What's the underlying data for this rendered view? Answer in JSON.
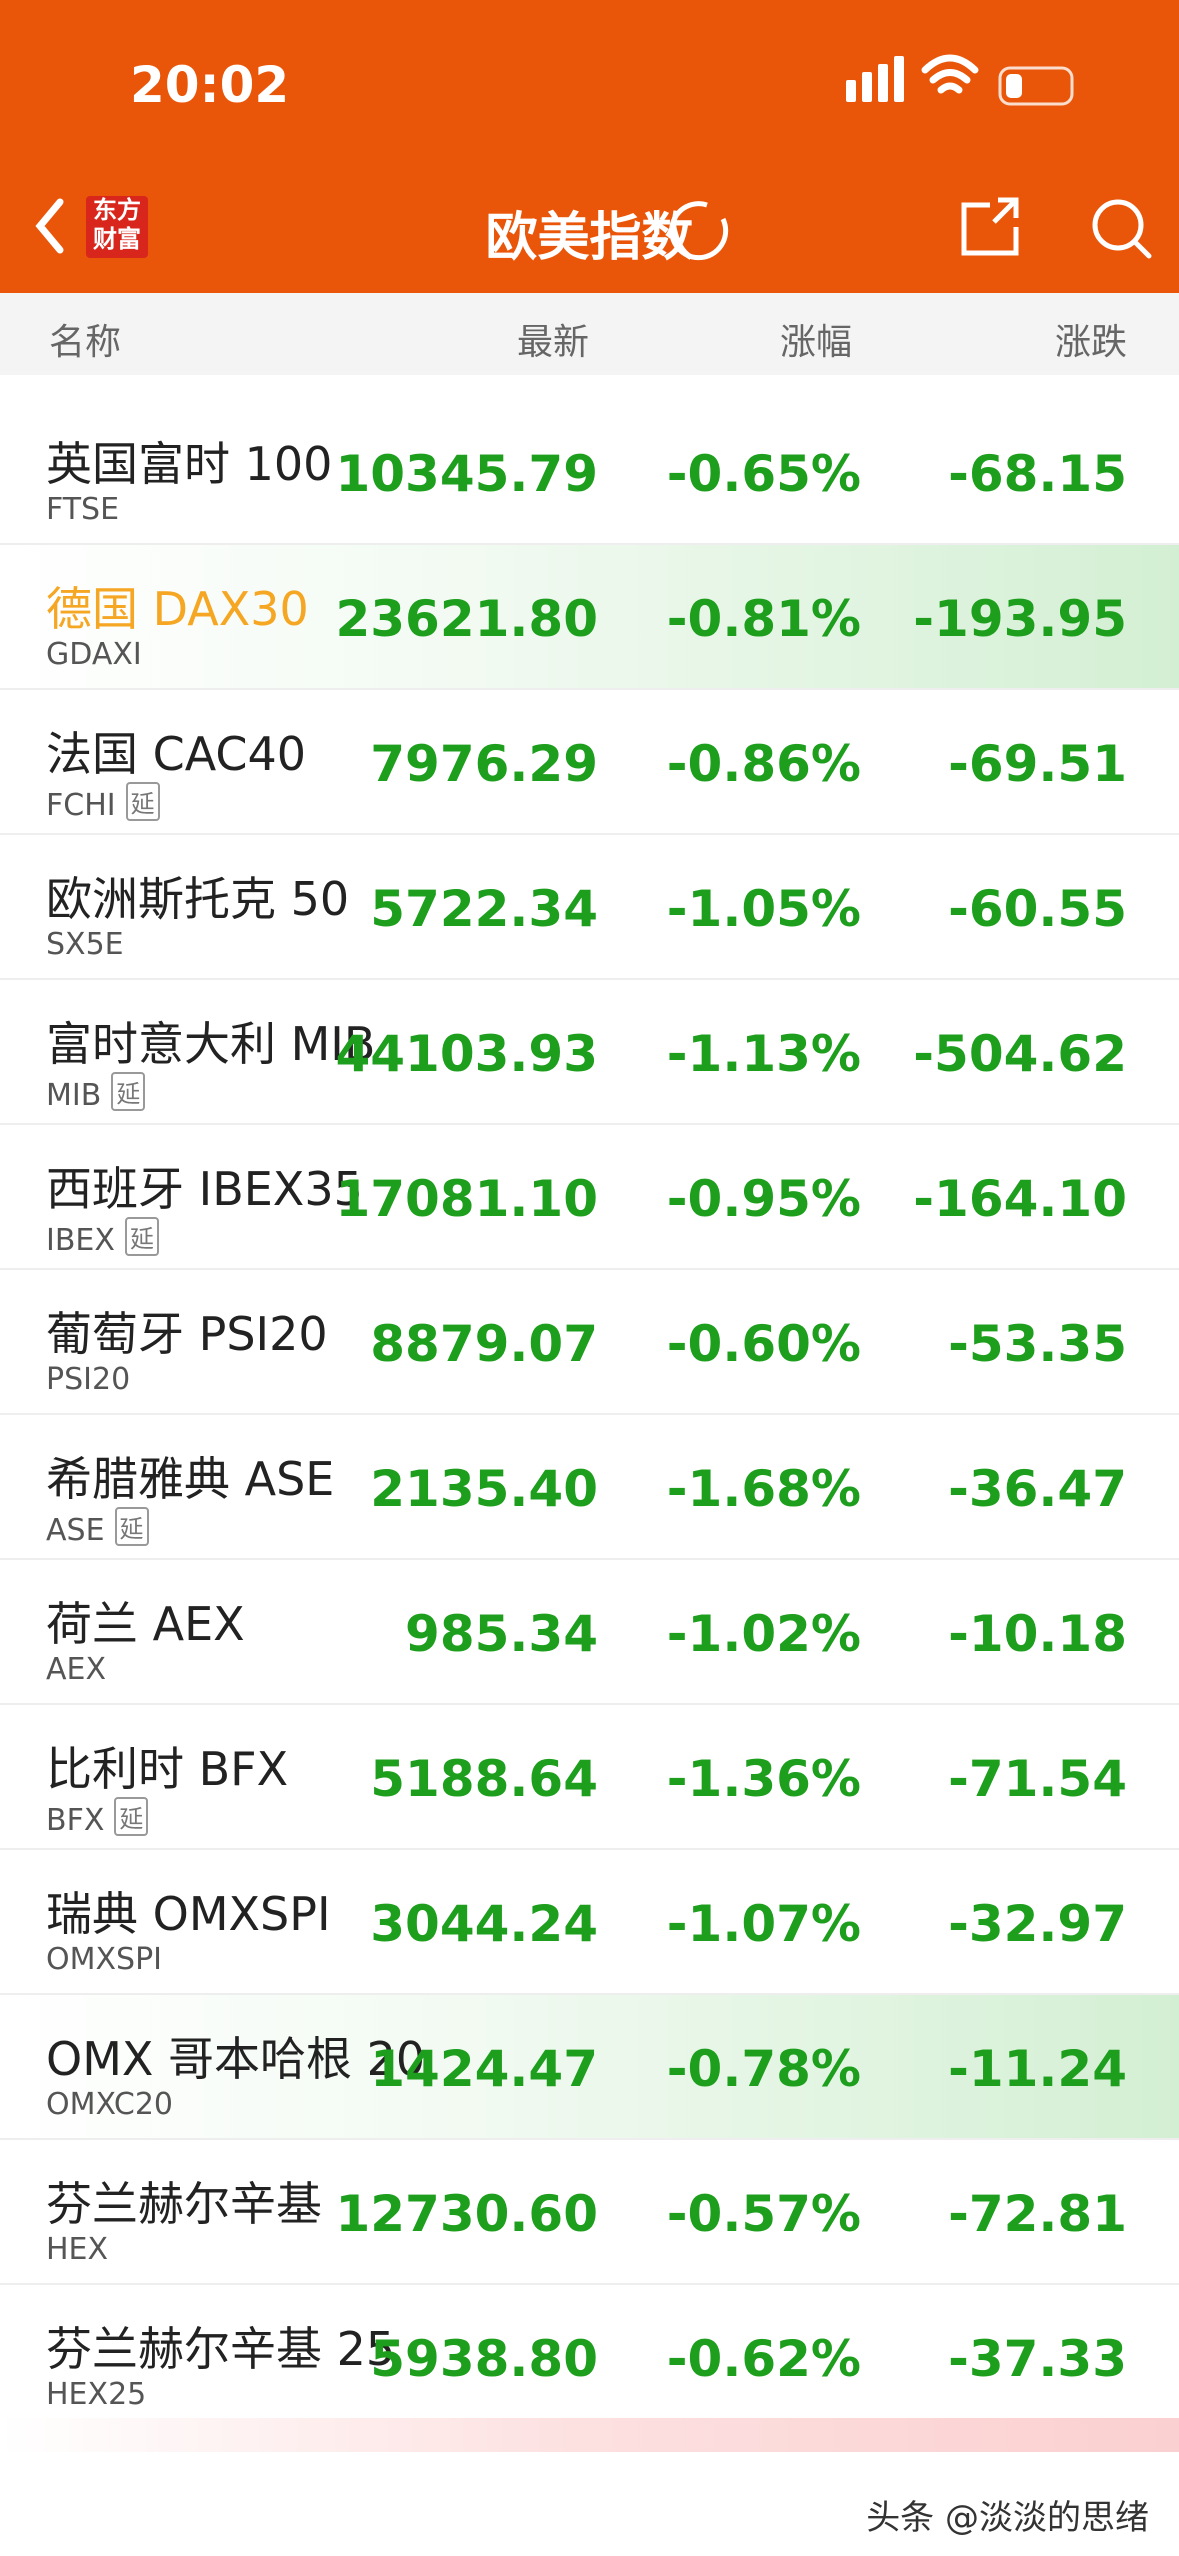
{
  "status_bar": {
    "time": "20:02"
  },
  "nav": {
    "logo": [
      "东方",
      "财富"
    ],
    "title": "欧美指数"
  },
  "table": {
    "columns": [
      "名称",
      "最新",
      "涨幅",
      "涨跌"
    ],
    "rows": [
      {
        "name": "英国富时 100",
        "code": "FTSE",
        "latest": "10345.79",
        "pct": "-0.65%",
        "change": "-68.15"
      },
      {
        "name": "德国 DAX30",
        "code": "GDAXI",
        "latest": "23621.80",
        "pct": "-0.81%",
        "change": "-193.95",
        "highlight": true
      },
      {
        "name": "法国 CAC40",
        "code": "FCHI",
        "tag": "延",
        "latest": "7976.29",
        "pct": "-0.86%",
        "change": "-69.51"
      },
      {
        "name": "欧洲斯托克 50",
        "code": "SX5E",
        "latest": "5722.34",
        "pct": "-1.05%",
        "change": "-60.55"
      },
      {
        "name": "富时意大利 MIB",
        "code": "MIB",
        "tag": "延",
        "latest": "44103.93",
        "pct": "-1.13%",
        "change": "-504.62"
      },
      {
        "name": "西班牙 IBEX35",
        "code": "IBEX",
        "tag": "延",
        "latest": "17081.10",
        "pct": "-0.95%",
        "change": "-164.10"
      },
      {
        "name": "葡萄牙 PSI20",
        "code": "PSI20",
        "latest": "8879.07",
        "pct": "-0.60%",
        "change": "-53.35"
      },
      {
        "name": "希腊雅典 ASE",
        "code": "ASE",
        "tag": "延",
        "latest": "2135.40",
        "pct": "-1.68%",
        "change": "-36.47"
      },
      {
        "name": "荷兰 AEX",
        "code": "AEX",
        "latest": "985.34",
        "pct": "-1.02%",
        "change": "-10.18"
      },
      {
        "name": "比利时 BFX",
        "code": "BFX",
        "tag": "延",
        "latest": "5188.64",
        "pct": "-1.36%",
        "change": "-71.54"
      },
      {
        "name": "瑞典 OMXSPI",
        "code": "OMXSPI",
        "latest": "3044.24",
        "pct": "-1.07%",
        "change": "-32.97"
      },
      {
        "name": "OMX 哥本哈根 20",
        "code": "OMXC20",
        "latest": "1424.47",
        "pct": "-0.78%",
        "change": "-11.24",
        "highlight": true
      },
      {
        "name": "芬兰赫尔辛基",
        "code": "HEX",
        "latest": "12730.60",
        "pct": "-0.57%",
        "change": "-72.81"
      },
      {
        "name": "芬兰赫尔辛基 25",
        "code": "HEX25",
        "latest": "5938.80",
        "pct": "-0.62%",
        "change": "-37.33"
      }
    ]
  },
  "watermark": "头条 @淡淡的思绪"
}
